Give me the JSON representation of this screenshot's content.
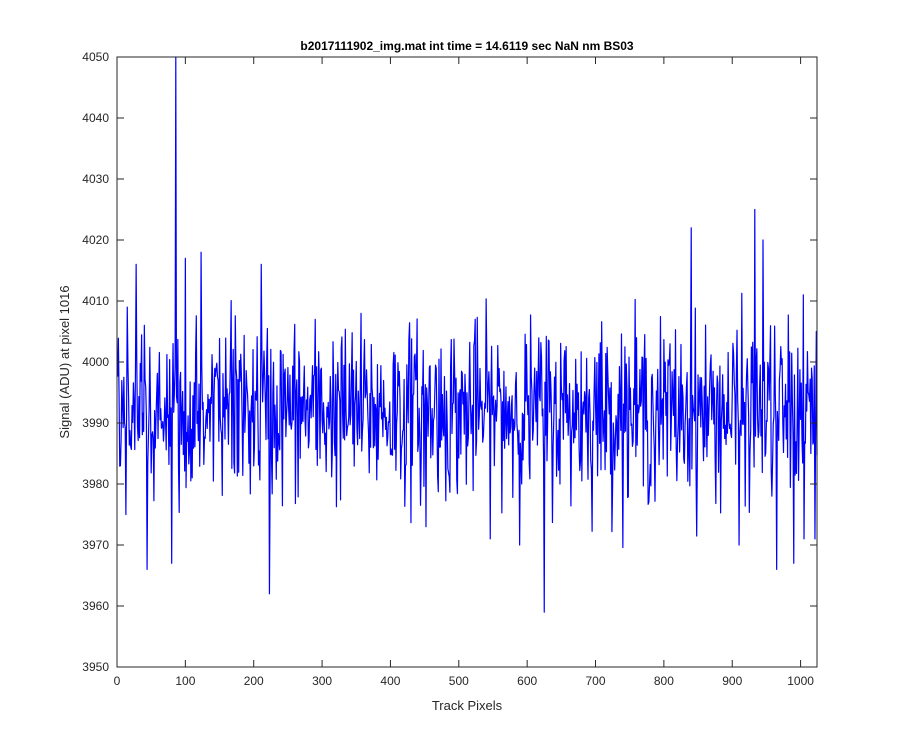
{
  "chart_data": {
    "type": "line",
    "title": "b2017111902_img.mat int time = 14.6119 sec  NaN nm BS03",
    "xlabel": "Track Pixels",
    "ylabel": "Signal (ADU) at pixel 1016",
    "xlim": [
      0,
      1024
    ],
    "ylim": [
      3950,
      4050
    ],
    "xticks": [
      0,
      100,
      200,
      300,
      400,
      500,
      600,
      700,
      800,
      900,
      1000
    ],
    "yticks": [
      3950,
      3960,
      3970,
      3980,
      3990,
      4000,
      4010,
      4020,
      4030,
      4040,
      4050
    ],
    "grid": false,
    "legend": "none",
    "series": [
      {
        "color": "#0000ff",
        "x_start": 1,
        "x_step": 1,
        "n_points": 1024,
        "mean": 3992,
        "noise_sd": 7,
        "features": [
          {
            "x": 5,
            "y": 3983
          },
          {
            "x": 13,
            "y": 3975
          },
          {
            "x": 15,
            "y": 4009
          },
          {
            "x": 28,
            "y": 4016
          },
          {
            "x": 44,
            "y": 3966
          },
          {
            "x": 80,
            "y": 3967
          },
          {
            "x": 86,
            "y": 4050
          },
          {
            "x": 100,
            "y": 4017
          },
          {
            "x": 123,
            "y": 4018
          },
          {
            "x": 211,
            "y": 4016
          },
          {
            "x": 223,
            "y": 3962
          },
          {
            "x": 452,
            "y": 3973
          },
          {
            "x": 612,
            "y": 3994
          },
          {
            "x": 625,
            "y": 3959
          },
          {
            "x": 840,
            "y": 4022
          },
          {
            "x": 910,
            "y": 3970
          },
          {
            "x": 933,
            "y": 4025
          },
          {
            "x": 945,
            "y": 4020
          },
          {
            "x": 965,
            "y": 3966
          },
          {
            "x": 990,
            "y": 3967
          },
          {
            "x": 1005,
            "y": 3971
          },
          {
            "x": 1021,
            "y": 3971
          },
          {
            "x": 1023,
            "y": 4005
          }
        ]
      }
    ]
  }
}
